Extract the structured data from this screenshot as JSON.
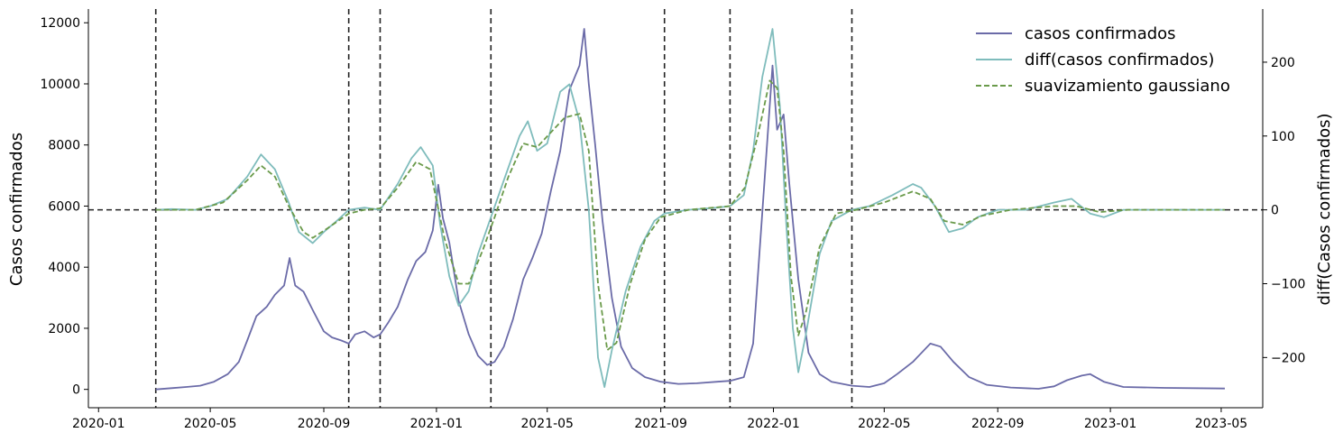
{
  "chart_data": {
    "type": "line",
    "xlabel": "",
    "ylabel_left": "Casos confirmados",
    "ylabel_right": "diff(Casos confirmados)",
    "x_range": [
      "2019-12-21",
      "2023-06-15"
    ],
    "ylim_left": [
      -600,
      12450
    ],
    "ylim_right": [
      -268,
      272
    ],
    "grid": false,
    "legend_position": "top-right",
    "x_ticks": [
      {
        "date": "2020-01-01",
        "label": "2020-01"
      },
      {
        "date": "2020-05-01",
        "label": "2020-05"
      },
      {
        "date": "2020-09-01",
        "label": "2020-09"
      },
      {
        "date": "2021-01-01",
        "label": "2021-01"
      },
      {
        "date": "2021-05-01",
        "label": "2021-05"
      },
      {
        "date": "2021-09-01",
        "label": "2021-09"
      },
      {
        "date": "2022-01-01",
        "label": "2022-01"
      },
      {
        "date": "2022-05-01",
        "label": "2022-05"
      },
      {
        "date": "2022-09-01",
        "label": "2022-09"
      },
      {
        "date": "2023-01-01",
        "label": "2023-01"
      },
      {
        "date": "2023-05-01",
        "label": "2023-05"
      }
    ],
    "y_ticks_left": [
      0,
      2000,
      4000,
      6000,
      8000,
      10000,
      12000
    ],
    "y_ticks_right": [
      -200,
      -100,
      0,
      100,
      200
    ],
    "y_tick_labels_right": [
      "−200",
      "−100",
      "0",
      "100",
      "200"
    ],
    "vertical_lines": [
      "2020-03-03",
      "2020-09-28",
      "2020-11-01",
      "2021-03-01",
      "2021-09-05",
      "2021-11-15",
      "2022-03-27"
    ],
    "horizontal_lines_right": [
      0
    ],
    "series": [
      {
        "name": "casos confirmados",
        "axis": "left",
        "color": "#6b6ba8",
        "style": "solid",
        "points": [
          [
            "2020-03-03",
            0
          ],
          [
            "2020-03-20",
            40
          ],
          [
            "2020-04-05",
            80
          ],
          [
            "2020-04-20",
            120
          ],
          [
            "2020-05-05",
            250
          ],
          [
            "2020-05-20",
            500
          ],
          [
            "2020-06-01",
            900
          ],
          [
            "2020-06-10",
            1600
          ],
          [
            "2020-06-20",
            2400
          ],
          [
            "2020-07-01",
            2700
          ],
          [
            "2020-07-10",
            3100
          ],
          [
            "2020-07-20",
            3400
          ],
          [
            "2020-07-26",
            4300
          ],
          [
            "2020-08-01",
            3400
          ],
          [
            "2020-08-10",
            3200
          ],
          [
            "2020-08-20",
            2600
          ],
          [
            "2020-09-01",
            1900
          ],
          [
            "2020-09-10",
            1700
          ],
          [
            "2020-09-20",
            1600
          ],
          [
            "2020-09-28",
            1500
          ],
          [
            "2020-10-05",
            1800
          ],
          [
            "2020-10-15",
            1900
          ],
          [
            "2020-10-25",
            1700
          ],
          [
            "2020-11-01",
            1800
          ],
          [
            "2020-11-10",
            2200
          ],
          [
            "2020-11-20",
            2700
          ],
          [
            "2020-12-01",
            3600
          ],
          [
            "2020-12-10",
            4200
          ],
          [
            "2020-12-20",
            4500
          ],
          [
            "2020-12-28",
            5200
          ],
          [
            "2021-01-03",
            6700
          ],
          [
            "2021-01-08",
            5600
          ],
          [
            "2021-01-15",
            4800
          ],
          [
            "2021-01-25",
            2900
          ],
          [
            "2021-02-05",
            1800
          ],
          [
            "2021-02-15",
            1100
          ],
          [
            "2021-02-25",
            800
          ],
          [
            "2021-03-05",
            900
          ],
          [
            "2021-03-15",
            1400
          ],
          [
            "2021-03-25",
            2300
          ],
          [
            "2021-04-05",
            3600
          ],
          [
            "2021-04-15",
            4300
          ],
          [
            "2021-04-25",
            5100
          ],
          [
            "2021-05-05",
            6500
          ],
          [
            "2021-05-15",
            7800
          ],
          [
            "2021-05-25",
            9800
          ],
          [
            "2021-06-05",
            10600
          ],
          [
            "2021-06-10",
            11800
          ],
          [
            "2021-06-15",
            10000
          ],
          [
            "2021-06-22",
            8000
          ],
          [
            "2021-06-30",
            5500
          ],
          [
            "2021-07-10",
            3000
          ],
          [
            "2021-07-20",
            1400
          ],
          [
            "2021-08-01",
            700
          ],
          [
            "2021-08-15",
            400
          ],
          [
            "2021-09-01",
            250
          ],
          [
            "2021-09-20",
            180
          ],
          [
            "2021-10-10",
            200
          ],
          [
            "2021-11-01",
            250
          ],
          [
            "2021-11-15",
            280
          ],
          [
            "2021-11-30",
            400
          ],
          [
            "2021-12-10",
            1500
          ],
          [
            "2021-12-20",
            5800
          ],
          [
            "2021-12-31",
            10600
          ],
          [
            "2022-01-05",
            8500
          ],
          [
            "2022-01-12",
            9000
          ],
          [
            "2022-01-18",
            6800
          ],
          [
            "2022-01-28",
            3600
          ],
          [
            "2022-02-08",
            1200
          ],
          [
            "2022-02-20",
            500
          ],
          [
            "2022-03-05",
            250
          ],
          [
            "2022-03-27",
            120
          ],
          [
            "2022-04-15",
            80
          ],
          [
            "2022-05-01",
            200
          ],
          [
            "2022-05-15",
            500
          ],
          [
            "2022-06-01",
            900
          ],
          [
            "2022-06-20",
            1500
          ],
          [
            "2022-07-01",
            1400
          ],
          [
            "2022-07-15",
            900
          ],
          [
            "2022-08-01",
            400
          ],
          [
            "2022-08-20",
            150
          ],
          [
            "2022-09-15",
            60
          ],
          [
            "2022-10-15",
            20
          ],
          [
            "2022-11-01",
            100
          ],
          [
            "2022-11-15",
            300
          ],
          [
            "2022-12-01",
            450
          ],
          [
            "2022-12-10",
            500
          ],
          [
            "2022-12-25",
            250
          ],
          [
            "2023-01-15",
            80
          ],
          [
            "2023-03-01",
            50
          ],
          [
            "2023-05-05",
            30
          ]
        ]
      },
      {
        "name": "diff(casos confirmados)",
        "axis": "right",
        "color": "#7fbcbc",
        "style": "solid",
        "points": [
          [
            "2020-03-03",
            0
          ],
          [
            "2020-03-20",
            1
          ],
          [
            "2020-04-15",
            0
          ],
          [
            "2020-05-01",
            5
          ],
          [
            "2020-05-20",
            15
          ],
          [
            "2020-06-10",
            45
          ],
          [
            "2020-06-25",
            75
          ],
          [
            "2020-07-10",
            55
          ],
          [
            "2020-07-25",
            10
          ],
          [
            "2020-08-05",
            -30
          ],
          [
            "2020-08-20",
            -45
          ],
          [
            "2020-09-01",
            -30
          ],
          [
            "2020-09-15",
            -15
          ],
          [
            "2020-09-28",
            0
          ],
          [
            "2020-10-15",
            3
          ],
          [
            "2020-11-01",
            0
          ],
          [
            "2020-11-20",
            35
          ],
          [
            "2020-12-05",
            70
          ],
          [
            "2020-12-15",
            85
          ],
          [
            "2020-12-28",
            60
          ],
          [
            "2021-01-05",
            -20
          ],
          [
            "2021-01-15",
            -90
          ],
          [
            "2021-01-25",
            -130
          ],
          [
            "2021-02-05",
            -110
          ],
          [
            "2021-02-15",
            -60
          ],
          [
            "2021-03-01",
            -10
          ],
          [
            "2021-03-15",
            40
          ],
          [
            "2021-04-01",
            100
          ],
          [
            "2021-04-10",
            120
          ],
          [
            "2021-04-20",
            80
          ],
          [
            "2021-05-01",
            90
          ],
          [
            "2021-05-15",
            160
          ],
          [
            "2021-05-25",
            170
          ],
          [
            "2021-06-05",
            120
          ],
          [
            "2021-06-15",
            0
          ],
          [
            "2021-06-25",
            -200
          ],
          [
            "2021-07-02",
            -240
          ],
          [
            "2021-07-10",
            -190
          ],
          [
            "2021-07-25",
            -110
          ],
          [
            "2021-08-10",
            -50
          ],
          [
            "2021-08-25",
            -15
          ],
          [
            "2021-09-05",
            -5
          ],
          [
            "2021-10-01",
            0
          ],
          [
            "2021-11-01",
            3
          ],
          [
            "2021-11-15",
            5
          ],
          [
            "2021-11-30",
            20
          ],
          [
            "2021-12-10",
            80
          ],
          [
            "2021-12-20",
            180
          ],
          [
            "2021-12-31",
            245
          ],
          [
            "2022-01-08",
            140
          ],
          [
            "2022-01-15",
            -20
          ],
          [
            "2022-01-22",
            -160
          ],
          [
            "2022-01-28",
            -220
          ],
          [
            "2022-02-05",
            -170
          ],
          [
            "2022-02-20",
            -60
          ],
          [
            "2022-03-05",
            -15
          ],
          [
            "2022-03-27",
            0
          ],
          [
            "2022-04-15",
            5
          ],
          [
            "2022-05-10",
            20
          ],
          [
            "2022-06-01",
            35
          ],
          [
            "2022-06-10",
            30
          ],
          [
            "2022-06-25",
            5
          ],
          [
            "2022-07-10",
            -30
          ],
          [
            "2022-07-25",
            -25
          ],
          [
            "2022-08-10",
            -10
          ],
          [
            "2022-09-01",
            0
          ],
          [
            "2022-10-01",
            0
          ],
          [
            "2022-11-01",
            10
          ],
          [
            "2022-11-20",
            15
          ],
          [
            "2022-12-10",
            -5
          ],
          [
            "2022-12-25",
            -10
          ],
          [
            "2023-01-15",
            0
          ],
          [
            "2023-03-01",
            0
          ],
          [
            "2023-05-05",
            0
          ]
        ]
      },
      {
        "name": "suavizamiento gaussiano",
        "axis": "right",
        "color": "#6a9a4a",
        "style": "dashed",
        "points": [
          [
            "2020-03-03",
            0
          ],
          [
            "2020-04-15",
            0
          ],
          [
            "2020-05-15",
            10
          ],
          [
            "2020-06-10",
            40
          ],
          [
            "2020-06-25",
            60
          ],
          [
            "2020-07-10",
            45
          ],
          [
            "2020-07-25",
            5
          ],
          [
            "2020-08-10",
            -30
          ],
          [
            "2020-08-20",
            -38
          ],
          [
            "2020-09-05",
            -25
          ],
          [
            "2020-09-28",
            -5
          ],
          [
            "2020-10-15",
            0
          ],
          [
            "2020-11-01",
            2
          ],
          [
            "2020-11-20",
            30
          ],
          [
            "2020-12-10",
            65
          ],
          [
            "2020-12-25",
            55
          ],
          [
            "2021-01-10",
            -40
          ],
          [
            "2021-01-25",
            -100
          ],
          [
            "2021-02-05",
            -100
          ],
          [
            "2021-02-20",
            -55
          ],
          [
            "2021-03-05",
            -10
          ],
          [
            "2021-03-20",
            45
          ],
          [
            "2021-04-05",
            90
          ],
          [
            "2021-04-20",
            85
          ],
          [
            "2021-05-05",
            105
          ],
          [
            "2021-05-20",
            125
          ],
          [
            "2021-06-05",
            130
          ],
          [
            "2021-06-15",
            80
          ],
          [
            "2021-06-25",
            -100
          ],
          [
            "2021-07-05",
            -190
          ],
          [
            "2021-07-15",
            -180
          ],
          [
            "2021-07-30",
            -100
          ],
          [
            "2021-08-15",
            -40
          ],
          [
            "2021-09-01",
            -10
          ],
          [
            "2021-10-01",
            0
          ],
          [
            "2021-11-15",
            5
          ],
          [
            "2021-12-01",
            30
          ],
          [
            "2021-12-15",
            100
          ],
          [
            "2021-12-28",
            175
          ],
          [
            "2022-01-05",
            165
          ],
          [
            "2022-01-12",
            80
          ],
          [
            "2022-01-20",
            -90
          ],
          [
            "2022-01-28",
            -170
          ],
          [
            "2022-02-05",
            -140
          ],
          [
            "2022-02-20",
            -50
          ],
          [
            "2022-03-10",
            -5
          ],
          [
            "2022-04-01",
            0
          ],
          [
            "2022-05-01",
            10
          ],
          [
            "2022-06-01",
            25
          ],
          [
            "2022-06-20",
            15
          ],
          [
            "2022-07-05",
            -15
          ],
          [
            "2022-07-25",
            -20
          ],
          [
            "2022-08-15",
            -8
          ],
          [
            "2022-09-15",
            0
          ],
          [
            "2022-11-01",
            5
          ],
          [
            "2022-11-25",
            5
          ],
          [
            "2022-12-20",
            -3
          ],
          [
            "2023-01-20",
            0
          ],
          [
            "2023-05-05",
            0
          ]
        ]
      }
    ]
  }
}
